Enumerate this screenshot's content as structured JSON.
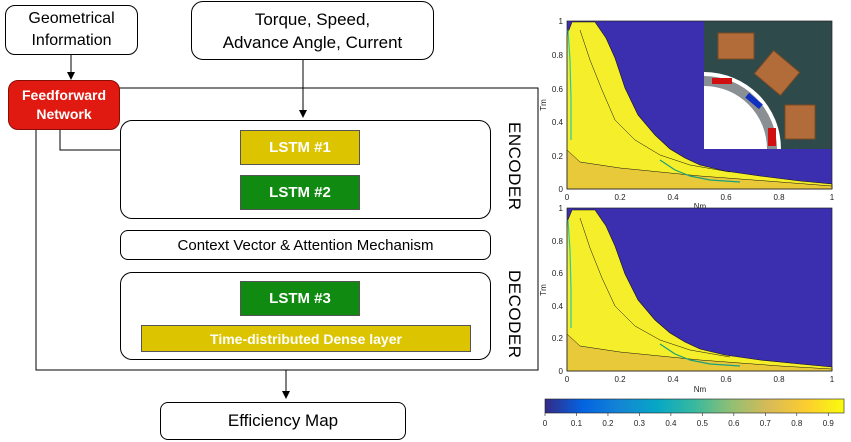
{
  "diagram": {
    "geometrical_information": "Geometrical\nInformation",
    "inputs": "Torque, Speed,\nAdvance Angle, Current",
    "feedforward_network": "Feedforward\nNetwork",
    "encoder_label": "ENCODER",
    "decoder_label": "DECODER",
    "lstm1": "LSTM #1",
    "lstm2": "LSTM #2",
    "lstm3": "LSTM #3",
    "context_vector": "Context Vector & Attention Mechanism",
    "dense_layer": "Time-distributed Dense layer",
    "output": "Efficiency Map"
  },
  "colors": {
    "feedforward_bg": "#e01a10",
    "lstm1_bg": "#dcc400",
    "lstm2_bg": "#108a10",
    "lstm3_bg": "#108a10",
    "dense_bg": "#dcc400",
    "plot_background": "#3b2fb0",
    "plot_yellow": "#f5ee2a"
  },
  "chart_data": [
    {
      "type": "heatmap",
      "xlabel": "Nm",
      "ylabel": "Tm",
      "x_ticks": [
        "0",
        "0.2",
        "0.4",
        "0.6",
        "0.8",
        "1"
      ],
      "y_ticks": [
        "0",
        "0.2",
        "0.4",
        "0.6",
        "0.8",
        "1"
      ],
      "xlim": [
        0,
        1
      ],
      "ylim": [
        0,
        1
      ]
    },
    {
      "type": "heatmap",
      "xlabel": "Nm",
      "ylabel": "Tm",
      "x_ticks": [
        "0",
        "0.2",
        "0.4",
        "0.6",
        "0.8",
        "1"
      ],
      "y_ticks": [
        "0",
        "0.2",
        "0.4",
        "0.6",
        "0.8",
        "1"
      ],
      "xlim": [
        0,
        1
      ],
      "ylim": [
        0,
        1
      ]
    }
  ],
  "colorbar": {
    "ticks": [
      "0",
      "0.1",
      "0.2",
      "0.3",
      "0.4",
      "0.5",
      "0.6",
      "0.7",
      "0.8",
      "0.9"
    ],
    "range": [
      0,
      0.95
    ],
    "colormap": [
      "#352a87",
      "#0363e1",
      "#1485d4",
      "#06a7c6",
      "#38b99e",
      "#92bf73",
      "#d9ba56",
      "#fcce2e",
      "#f9fb0e"
    ]
  }
}
